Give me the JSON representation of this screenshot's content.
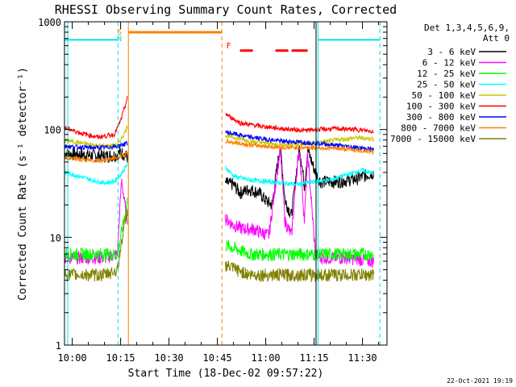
{
  "chart_data": {
    "type": "line",
    "title": "RHESSI Observing Summary Count Rates, Corrected",
    "xlabel": "Start Time (18-Dec-02 09:57:22)",
    "ylabel": "Corrected Count Rate (s⁻¹ detector⁻¹)",
    "y_scale": "log",
    "ylim": [
      1,
      1000
    ],
    "xlim_minutes": [
      -2.4,
      97.6
    ],
    "x_ticks": [
      {
        "minute": 0,
        "label": "10:00"
      },
      {
        "minute": 15,
        "label": "10:15"
      },
      {
        "minute": 30,
        "label": "10:30"
      },
      {
        "minute": 45,
        "label": "10:45"
      },
      {
        "minute": 60,
        "label": "11:00"
      },
      {
        "minute": 75,
        "label": "11:15"
      },
      {
        "minute": 90,
        "label": "11:30"
      }
    ],
    "y_ticks": [
      {
        "value": 1,
        "label": "1"
      },
      {
        "value": 10,
        "label": "10"
      },
      {
        "value": 100,
        "label": "100"
      },
      {
        "value": 1000,
        "label": "1000"
      }
    ],
    "legend": {
      "position": "top-right",
      "header": [
        "Det 1,3,4,5,6,9,",
        "Att 0"
      ]
    },
    "footer_text": "22-Oct-2021 19:19",
    "colors": {
      "axes": "#000000",
      "saa": "#00e5e5",
      "night": "#ff8000",
      "flare": "#ff0000"
    },
    "markers": [
      {
        "label": "S",
        "minute": 15.4,
        "color": "#ff8000"
      },
      {
        "label": "N",
        "minute": 15.4,
        "color": "#00e5e5"
      },
      {
        "label": "F",
        "minute": 48.5,
        "color": "#ff0000"
      }
    ],
    "flags": [
      {
        "name": "SAA",
        "color": "#00e5e5",
        "intervals": [
          [
            -2.4,
            14.2
          ],
          [
            76.2,
            95.4
          ]
        ],
        "level": 680
      },
      {
        "name": "Night",
        "color": "#ff8000",
        "intervals": [
          [
            17.4,
            46.4
          ]
        ],
        "level": 800
      },
      {
        "name": "Flare",
        "color": "#ff0000",
        "intervals": [
          [
            52,
            56
          ],
          [
            63,
            67
          ],
          [
            68,
            73
          ]
        ],
        "level": 540
      }
    ],
    "vertical_lines": [
      {
        "minute": -1.4,
        "color": "#00e5e5",
        "style": "solid"
      },
      {
        "minute": 14.2,
        "color": "#00e5e5",
        "style": "dashed"
      },
      {
        "minute": 17.4,
        "color": "#ff8000",
        "style": "solid"
      },
      {
        "minute": 46.4,
        "color": "#ff8000",
        "style": "dashed"
      },
      {
        "minute": 75.6,
        "color": "#000000",
        "style": "solid"
      },
      {
        "minute": 76.2,
        "color": "#00e5e5",
        "style": "solid"
      },
      {
        "minute": 95.4,
        "color": "#00e5e5",
        "style": "dashed"
      }
    ],
    "series": [
      {
        "name": "3 - 6 keV",
        "color": "#000000",
        "x": [
          -2.4,
          5,
          10,
          13.5,
          15,
          16.5,
          17.2,
          47.5,
          50,
          52,
          55,
          58,
          60,
          62,
          63.5,
          64.5,
          66,
          68,
          69.5,
          70.5,
          72,
          73,
          75.4,
          77,
          82,
          88,
          93.5
        ],
        "y": [
          60,
          58,
          57,
          58,
          62,
          58,
          55,
          32,
          31,
          26,
          28,
          26,
          22,
          20,
          45,
          70,
          22,
          16,
          40,
          70,
          30,
          65,
          40,
          33,
          33,
          35,
          40
        ]
      },
      {
        "name": "6 - 12 keV",
        "color": "#ff00ff",
        "x": [
          -2.4,
          5,
          10,
          14,
          15.3,
          16.3,
          17.2,
          47.5,
          50,
          53,
          56,
          59,
          61,
          63.5,
          64.5,
          66,
          68,
          69.5,
          70.5,
          72,
          73,
          75.4,
          77,
          85,
          93.5
        ],
        "y": [
          6.5,
          6.5,
          6.5,
          7,
          35,
          20,
          15,
          15,
          13,
          12,
          12,
          11,
          10.5,
          40,
          65,
          14,
          10.5,
          38,
          65,
          14,
          60,
          7,
          6.5,
          6.5,
          6
        ]
      },
      {
        "name": "12 - 25 keV",
        "color": "#00ff00",
        "x": [
          -2.4,
          5,
          10,
          14,
          15.5,
          17.2,
          47.5,
          55,
          65,
          75.4,
          80,
          93.5
        ],
        "y": [
          7,
          7,
          7,
          7,
          12,
          22,
          8.5,
          7,
          7,
          7,
          7,
          7
        ]
      },
      {
        "name": "25 - 50 keV",
        "color": "#00ffff",
        "x": [
          -2.4,
          2,
          6,
          10,
          13,
          15,
          17.2,
          47.5,
          50,
          55,
          60,
          65,
          70,
          75.4,
          80,
          85,
          90,
          93.5
        ],
        "y": [
          40,
          37,
          34,
          32,
          33,
          38,
          48,
          45,
          37,
          34,
          33,
          32,
          31,
          33,
          34,
          38,
          42,
          39
        ]
      },
      {
        "name": "50 - 100 keV",
        "color": "#c8c800",
        "x": [
          -2.4,
          5,
          10,
          14,
          16,
          17.2,
          47.5,
          55,
          65,
          75.4,
          82,
          88,
          93.5
        ],
        "y": [
          80,
          73,
          70,
          72,
          90,
          110,
          88,
          78,
          72,
          75,
          80,
          84,
          82
        ]
      },
      {
        "name": "100 - 300 keV",
        "color": "#ff0000",
        "x": [
          -2.4,
          3,
          8,
          13,
          15,
          17.2,
          47.5,
          52,
          58,
          65,
          72,
          75.4,
          82,
          88,
          93.5
        ],
        "y": [
          104,
          92,
          85,
          90,
          120,
          200,
          140,
          115,
          108,
          102,
          98,
          100,
          102,
          100,
          96
        ]
      },
      {
        "name": "300 - 800 keV",
        "color": "#0000ff",
        "x": [
          -2.4,
          5,
          10,
          14,
          17.2,
          47.5,
          55,
          65,
          75.4,
          85,
          93.5
        ],
        "y": [
          70,
          68,
          68,
          70,
          75,
          95,
          85,
          78,
          75,
          70,
          65
        ]
      },
      {
        "name": "800 - 7000 keV",
        "color": "#ff8000",
        "x": [
          -2.4,
          5,
          10,
          14,
          17.2,
          47.5,
          55,
          65,
          75.4,
          85,
          93.5
        ],
        "y": [
          55,
          52,
          52,
          55,
          60,
          78,
          72,
          68,
          68,
          66,
          62
        ]
      },
      {
        "name": "7000 - 15000 keV",
        "color": "#808000",
        "x": [
          -2.4,
          5,
          10,
          14,
          15.5,
          17.2,
          47.5,
          55,
          65,
          75.4,
          80,
          93.5
        ],
        "y": [
          4.5,
          4.5,
          4.5,
          5,
          10,
          18,
          5.5,
          4.5,
          4.5,
          4.5,
          4.5,
          4.5
        ]
      }
    ]
  }
}
